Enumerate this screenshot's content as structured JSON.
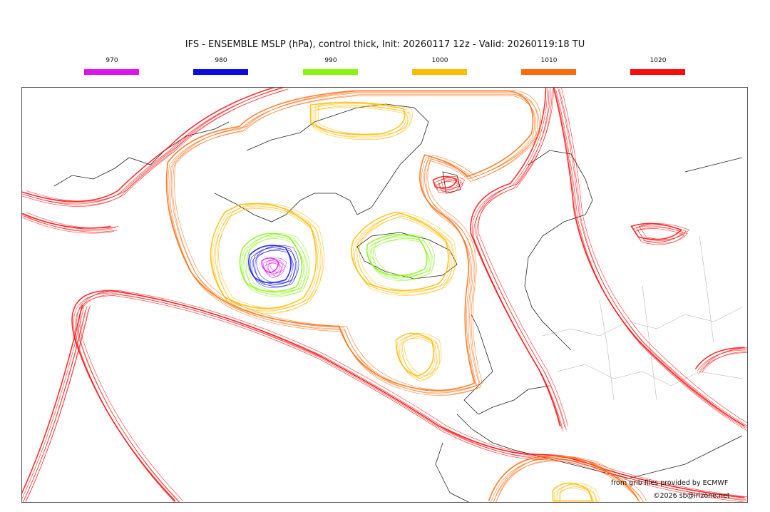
{
  "title": "IFS - ENSEMBLE MSLP (hPa), control thick, Init: 20260117 12z - Valid: 20260119:18 TU",
  "legend": [
    {
      "label": "970",
      "color": "#e012f0"
    },
    {
      "label": "980",
      "color": "#0a0ae6"
    },
    {
      "label": "990",
      "color": "#88f511"
    },
    {
      "label": "1000",
      "color": "#ffbb00"
    },
    {
      "label": "1010",
      "color": "#ff6a0a"
    },
    {
      "label": "1020",
      "color": "#ff0a0a"
    }
  ],
  "credits": {
    "source": "from grib files provided by ECMWF",
    "copyright": "©2026 sb@irizone.net"
  }
}
